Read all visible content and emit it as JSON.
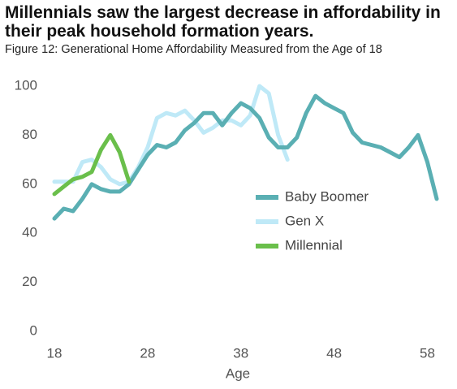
{
  "chart_data": {
    "type": "line",
    "title": "Millennials saw the largest decrease in affordability in their peak household formation years.",
    "subtitle": "Figure 12: Generational Home Affordability Measured from the Age of 18",
    "x_label": "Age",
    "x": [
      18,
      19,
      20,
      21,
      22,
      23,
      24,
      25,
      26,
      27,
      28,
      29,
      30,
      31,
      32,
      33,
      34,
      35,
      36,
      37,
      38,
      39,
      40,
      41,
      42,
      43,
      44,
      45,
      46,
      47,
      48,
      49,
      50,
      51,
      52,
      53,
      54,
      55,
      56,
      57,
      58,
      59
    ],
    "xlim": [
      18,
      59
    ],
    "xticks": [
      18,
      28,
      38,
      48,
      58
    ],
    "ylim": [
      0,
      100
    ],
    "yticks": [
      0,
      20,
      40,
      60,
      80,
      100
    ],
    "grid": false,
    "series": [
      {
        "name": "Baby Boomer",
        "color": "#5aafb3",
        "values": [
          46,
          50,
          49,
          54,
          60,
          58,
          57,
          57,
          60,
          66,
          72,
          76,
          75,
          77,
          82,
          85,
          89,
          89,
          84,
          89,
          93,
          91,
          87,
          79,
          75,
          75,
          79,
          89,
          96,
          93,
          91,
          89,
          81,
          77,
          76,
          75,
          73,
          71,
          75,
          80,
          69,
          54
        ]
      },
      {
        "name": "Gen X",
        "color": "#bfe9f7",
        "values": [
          61,
          61,
          61,
          69,
          70,
          67,
          62,
          60,
          61,
          67,
          75,
          87,
          89,
          88,
          90,
          86,
          81,
          83,
          86,
          86,
          84,
          88,
          100,
          97,
          80,
          70,
          null,
          null,
          null,
          null,
          null,
          null,
          null,
          null,
          null,
          null,
          null,
          null,
          null,
          null,
          null,
          null
        ]
      },
      {
        "name": "Millennial",
        "color": "#6abf4b",
        "values": [
          56,
          59,
          62,
          63,
          65,
          74,
          80,
          73,
          61,
          null,
          null,
          null,
          null,
          null,
          null,
          null,
          null,
          null,
          null,
          null,
          null,
          null,
          null,
          null,
          null,
          null,
          null,
          null,
          null,
          null,
          null,
          null,
          null,
          null,
          null,
          null,
          null,
          null,
          null,
          null,
          null,
          null
        ]
      }
    ]
  }
}
